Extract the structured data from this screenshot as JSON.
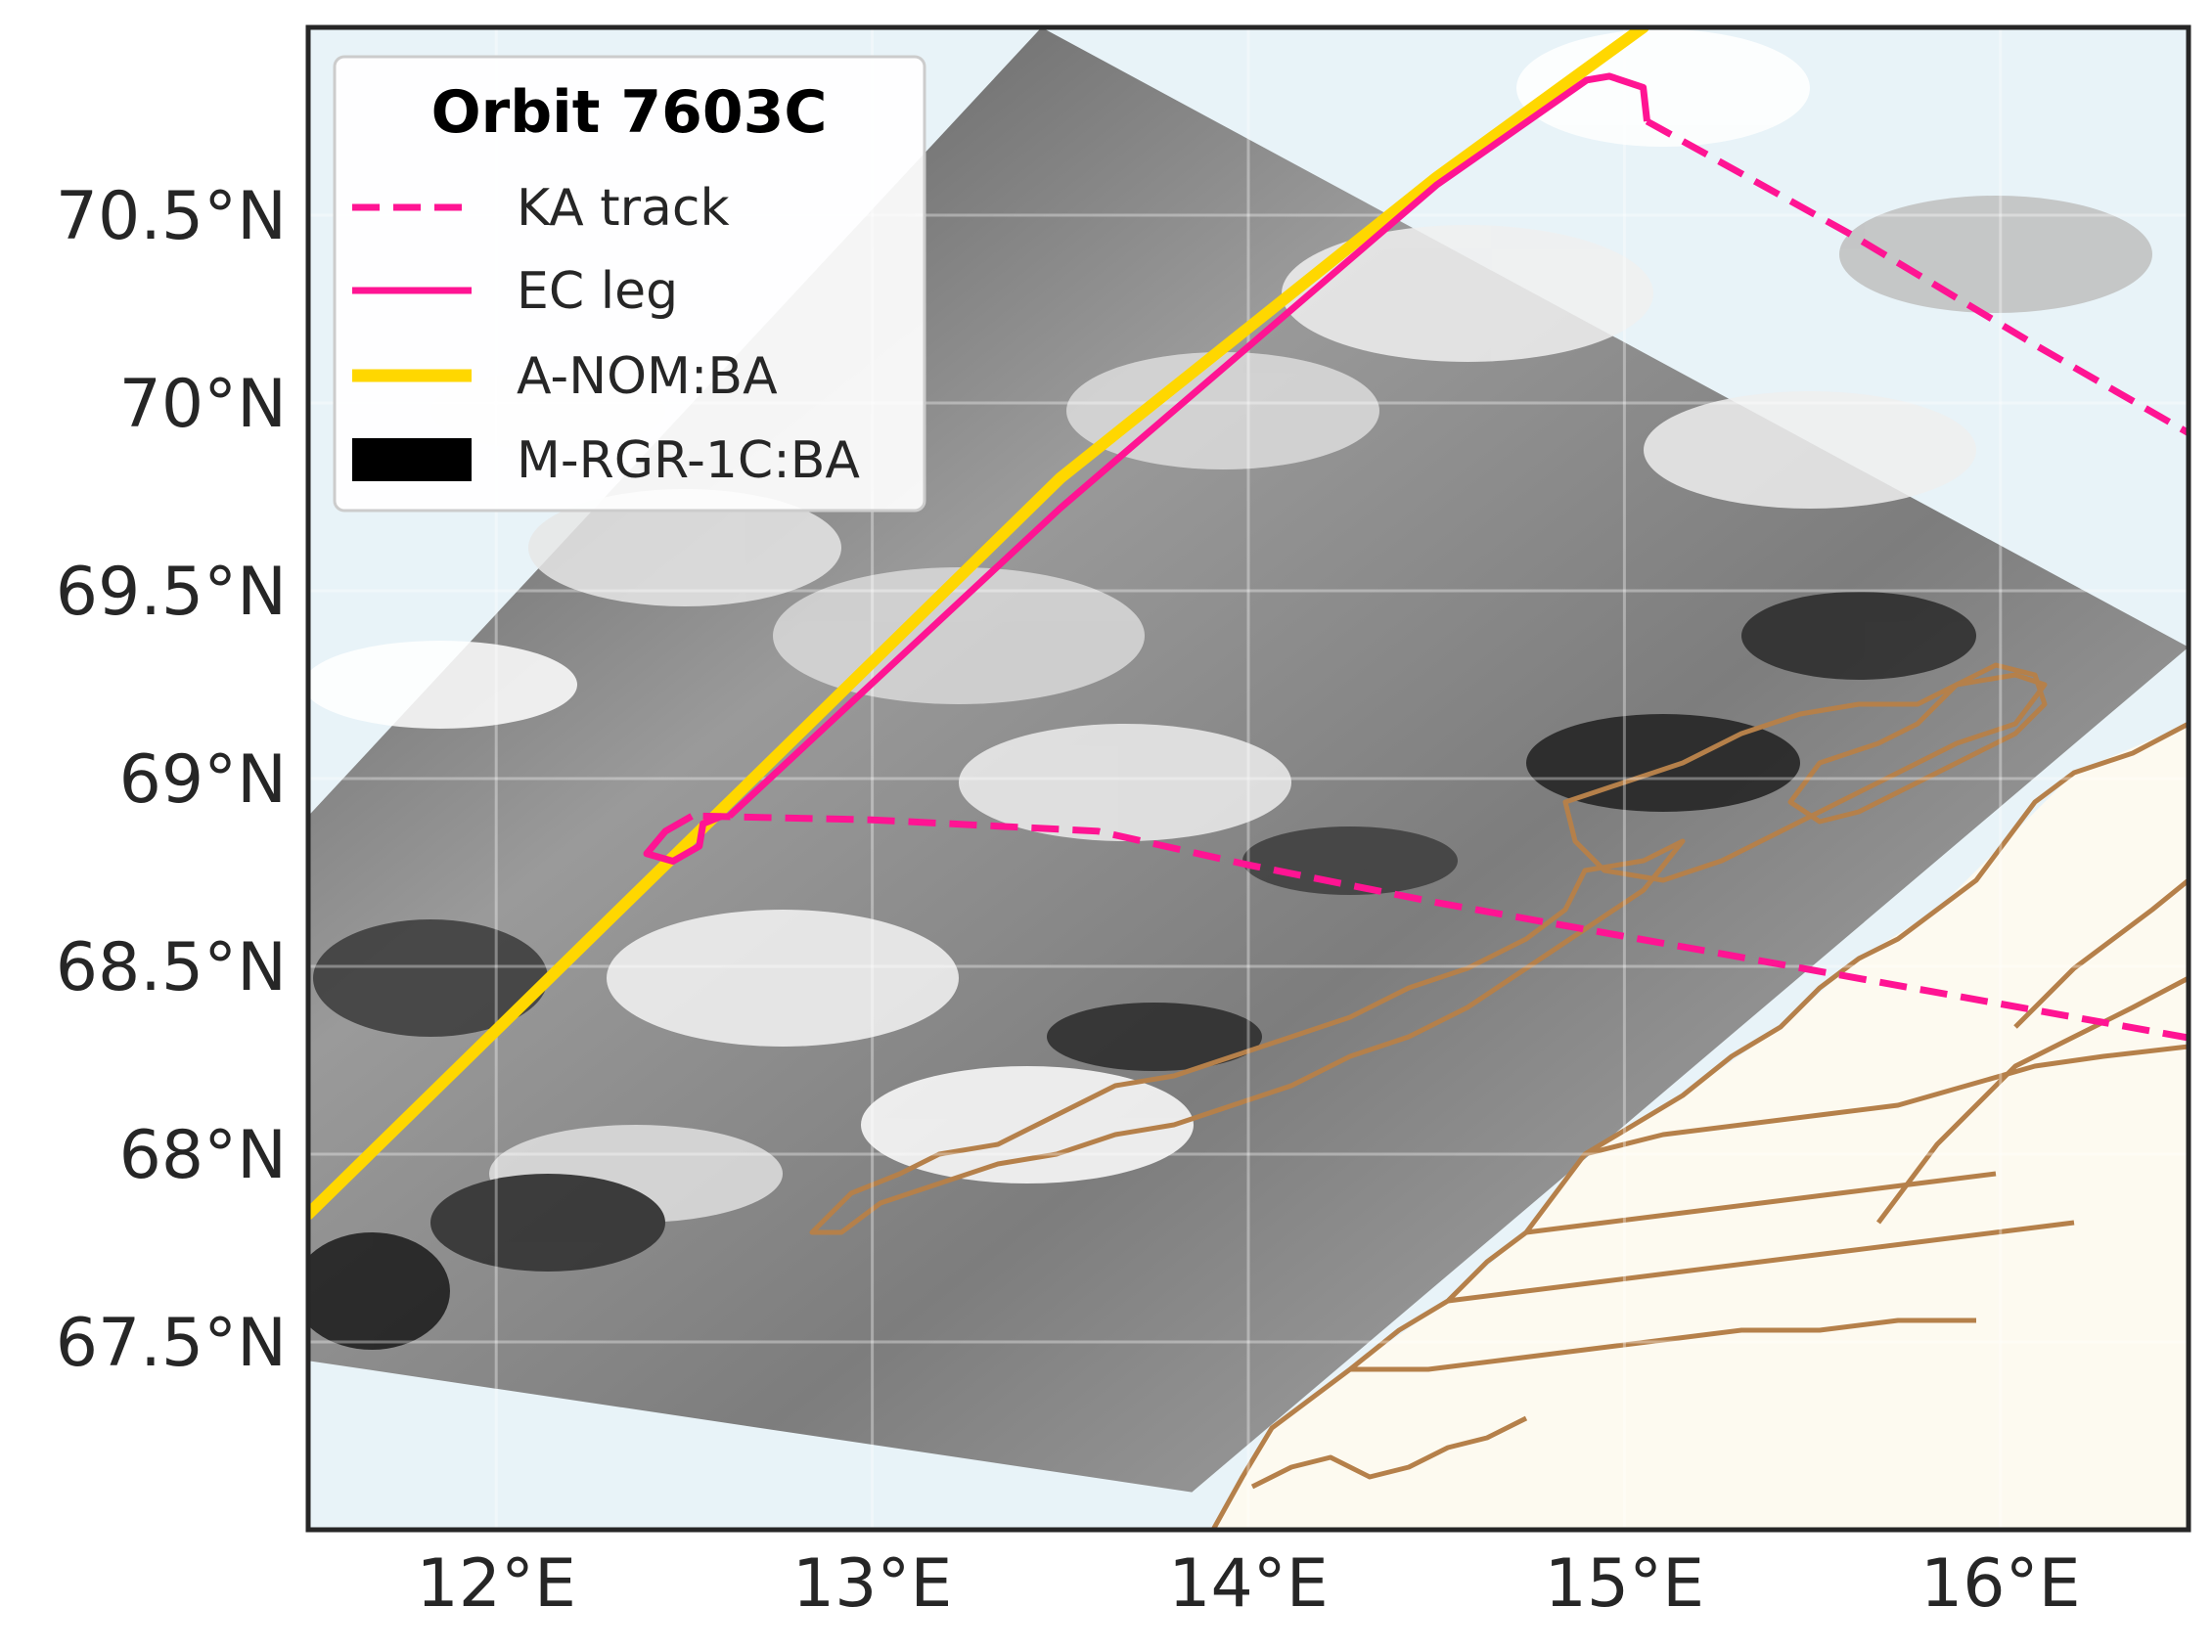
{
  "map": {
    "title": "",
    "lon_range": [
      11.5,
      16.5
    ],
    "lat_range": [
      67.0,
      71.0
    ],
    "x_ticks": [
      {
        "value": 12,
        "label": "12°E"
      },
      {
        "value": 13,
        "label": "13°E"
      },
      {
        "value": 14,
        "label": "14°E"
      },
      {
        "value": 15,
        "label": "15°E"
      },
      {
        "value": 16,
        "label": "16°E"
      }
    ],
    "y_ticks": [
      {
        "value": 67.5,
        "label": "67.5°N"
      },
      {
        "value": 68.0,
        "label": "68°N"
      },
      {
        "value": 68.5,
        "label": "68.5°N"
      },
      {
        "value": 69.0,
        "label": "69°N"
      },
      {
        "value": 69.5,
        "label": "69.5°N"
      },
      {
        "value": 70.0,
        "label": "70°N"
      },
      {
        "value": 70.5,
        "label": "70.5°N"
      }
    ],
    "grid": true,
    "colors": {
      "ocean": "#e8f3f8",
      "land": "#fdfaf0",
      "coastline": "#b5804a",
      "ka_track": "#ff1493",
      "ec_leg": "#ff1493",
      "a_nom": "#ffd700",
      "frame": "#262626"
    },
    "swath_corners": [
      [
        13.45,
        71.0
      ],
      [
        16.5,
        69.35
      ],
      [
        13.85,
        67.1
      ],
      [
        11.5,
        67.45
      ],
      [
        11.5,
        68.9
      ]
    ],
    "legend": {
      "position": "top-left",
      "title": "Orbit 7603C",
      "entries": [
        {
          "label": "KA track",
          "style": "dashed-line",
          "color": "#ff1493"
        },
        {
          "label": "EC leg",
          "style": "solid-line",
          "color": "#ff1493"
        },
        {
          "label": "A-NOM:BA",
          "style": "thick-line",
          "color": "#ffd700"
        },
        {
          "label": "M-RGR-1C:BA",
          "style": "filled-patch",
          "color": "#000000"
        }
      ]
    },
    "series": {
      "a_nom": [
        [
          11.5,
          67.84
        ],
        [
          12.5,
          68.82
        ],
        [
          13.5,
          69.8
        ],
        [
          14.5,
          70.6
        ],
        [
          15.05,
          71.0
        ]
      ],
      "ec_leg": [
        [
          12.62,
          68.9
        ],
        [
          13.5,
          69.72
        ],
        [
          14.5,
          70.58
        ],
        [
          14.9,
          70.86
        ],
        [
          14.96,
          70.87
        ],
        [
          15.05,
          70.84
        ],
        [
          15.06,
          70.75
        ]
      ],
      "ec_loop": [
        [
          12.52,
          68.9
        ],
        [
          12.45,
          68.86
        ],
        [
          12.4,
          68.8
        ],
        [
          12.47,
          68.78
        ],
        [
          12.54,
          68.82
        ],
        [
          12.55,
          68.88
        ],
        [
          12.6,
          68.9
        ]
      ],
      "ka_track_south": [
        [
          12.55,
          68.9
        ],
        [
          13.0,
          68.89
        ],
        [
          13.6,
          68.86
        ],
        [
          14.0,
          68.77
        ],
        [
          14.5,
          68.67
        ],
        [
          15.0,
          68.58
        ],
        [
          15.5,
          68.49
        ],
        [
          16.0,
          68.4
        ],
        [
          16.5,
          68.31
        ]
      ],
      "ka_track_north": [
        [
          15.06,
          70.75
        ],
        [
          15.6,
          70.45
        ],
        [
          16.1,
          70.15
        ],
        [
          16.5,
          69.92
        ]
      ]
    }
  }
}
